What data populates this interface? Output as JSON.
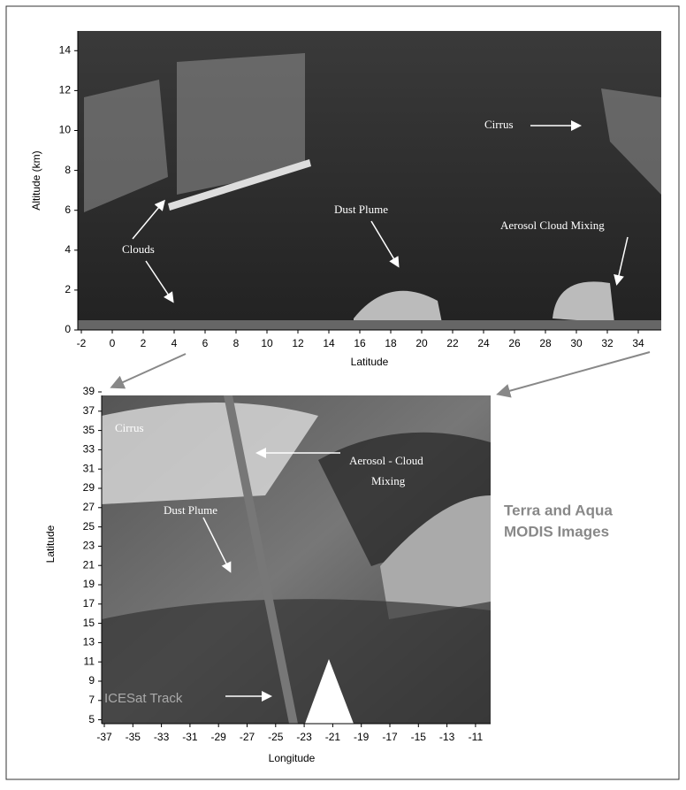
{
  "top_panel": {
    "y_label": "Altitude (km)",
    "x_label": "Latitude",
    "yticks": [
      "0",
      "2",
      "4",
      "6",
      "8",
      "10",
      "12",
      "14"
    ],
    "xticks": [
      "-2",
      "0",
      "2",
      "4",
      "6",
      "8",
      "10",
      "12",
      "14",
      "16",
      "18",
      "20",
      "22",
      "24",
      "26",
      "28",
      "30",
      "32",
      "34"
    ],
    "annotations": [
      "Cirrus",
      "Dust Plume",
      "Aerosol Cloud Mixing",
      "Clouds"
    ]
  },
  "bottom_panel": {
    "y_label": "Latitude",
    "x_label": "Longitude",
    "yticks": [
      "39",
      "37",
      "35",
      "33",
      "31",
      "29",
      "27",
      "25",
      "23",
      "21",
      "19",
      "17",
      "15",
      "13",
      "11",
      "9",
      "7",
      "5"
    ],
    "xticks": [
      "-37",
      "-35",
      "-33",
      "-31",
      "-29",
      "-27",
      "-25",
      "-23",
      "-21",
      "-19",
      "-17",
      "-15",
      "-13",
      "-11"
    ],
    "annotations": [
      "Cirrus",
      "Aerosol - Cloud",
      "Mixing",
      "Dust Plume",
      "ICESat Track"
    ]
  },
  "caption": [
    "Terra and Aqua",
    "MODIS Images"
  ]
}
